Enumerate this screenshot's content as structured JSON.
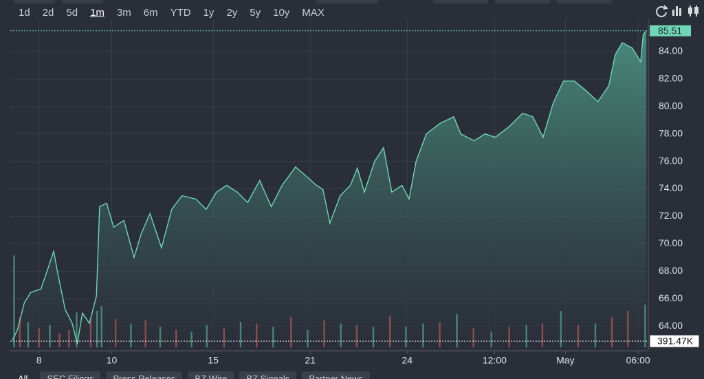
{
  "range_buttons": [
    "1d",
    "2d",
    "5d",
    "1m",
    "3m",
    "6m",
    "YTD",
    "1y",
    "2y",
    "5y",
    "10y",
    "MAX"
  ],
  "active_range": "1m",
  "tabs": [
    "All",
    "SEC Filings",
    "Press Releases",
    "BZ Wire",
    "BZ Signals",
    "Partner News"
  ],
  "active_tab": "All",
  "chart_data": {
    "type": "area",
    "color": "#6fd6b8",
    "grid": true,
    "xlim": [
      0,
      100
    ],
    "ylim": [
      62.45,
      86.35
    ],
    "xticks": [
      {
        "value": 4.5,
        "label": "8"
      },
      {
        "value": 15.9,
        "label": "10"
      },
      {
        "value": 31.8,
        "label": "15"
      },
      {
        "value": 47.0,
        "label": "21"
      },
      {
        "value": 62.2,
        "label": "24"
      },
      {
        "value": 75.9,
        "label": "12:00"
      },
      {
        "value": 87.0,
        "label": "May"
      },
      {
        "value": 98.4,
        "label": "06:00"
      }
    ],
    "yticks": [
      {
        "value": 64,
        "label": "64.00"
      },
      {
        "value": 66,
        "label": "66.00"
      },
      {
        "value": 68,
        "label": "68.00"
      },
      {
        "value": 70,
        "label": "70.00"
      },
      {
        "value": 72,
        "label": "72.00"
      },
      {
        "value": 74,
        "label": "74.00"
      },
      {
        "value": 76,
        "label": "76.00"
      },
      {
        "value": 78,
        "label": "78.00"
      },
      {
        "value": 80,
        "label": "80.00"
      },
      {
        "value": 82,
        "label": "82.00"
      },
      {
        "value": 84,
        "label": "84.00"
      }
    ],
    "x": [
      0.3,
      1.1,
      2.2,
      3.2,
      4.8,
      5.9,
      6.8,
      7.5,
      8.6,
      9.7,
      10.5,
      11.3,
      12.4,
      13.5,
      14.0,
      15.1,
      16.2,
      17.8,
      19.4,
      20.5,
      21.9,
      23.7,
      25.3,
      26.9,
      29.1,
      30.7,
      32.3,
      33.9,
      35.6,
      37.2,
      39.1,
      40.9,
      42.6,
      44.7,
      46.3,
      48.0,
      49.0,
      50.1,
      51.7,
      53.3,
      54.4,
      55.5,
      57.1,
      58.5,
      59.8,
      61.4,
      62.5,
      63.6,
      65.2,
      67.3,
      69.5,
      70.6,
      72.7,
      74.4,
      76.0,
      78.1,
      80.3,
      81.9,
      83.5,
      85.1,
      86.7,
      88.4,
      90.0,
      92.1,
      93.8,
      94.8,
      95.9,
      97.5,
      98.8,
      99.2,
      99.7
    ],
    "values": [
      62.95,
      63.7,
      65.7,
      66.45,
      66.7,
      68.2,
      69.45,
      67.7,
      65.2,
      64.2,
      62.7,
      64.95,
      64.2,
      66.2,
      72.7,
      72.95,
      71.2,
      71.7,
      69.0,
      70.7,
      72.2,
      69.7,
      72.5,
      73.5,
      73.25,
      72.5,
      73.75,
      74.25,
      73.75,
      73.0,
      74.6,
      72.7,
      74.25,
      75.6,
      74.95,
      74.25,
      73.95,
      71.5,
      73.5,
      74.25,
      75.5,
      73.75,
      76.0,
      77.0,
      73.75,
      74.25,
      73.25,
      76.0,
      78.0,
      78.75,
      79.25,
      78.0,
      77.5,
      78.0,
      77.75,
      78.5,
      79.5,
      79.25,
      77.75,
      80.25,
      81.85,
      81.85,
      81.25,
      80.35,
      81.5,
      83.75,
      84.65,
      84.25,
      83.25,
      85.25,
      85.51
    ],
    "last_price": 85.51,
    "volume": {
      "y2lim": [
        0,
        20700000
      ],
      "x": [
        0.6,
        1.5,
        2.8,
        4.5,
        6.2,
        7.7,
        9.2,
        10.4,
        12.6,
        13.6,
        14.3,
        16.5,
        18.9,
        21.2,
        23.5,
        26.0,
        28.4,
        30.8,
        33.5,
        36.1,
        38.6,
        41.2,
        44.0,
        46.6,
        49.2,
        51.8,
        54.3,
        56.9,
        59.5,
        62.0,
        64.7,
        67.3,
        70.0,
        72.6,
        75.4,
        78.2,
        80.9,
        83.4,
        86.3,
        89.0,
        91.7,
        94.3,
        96.8,
        99.5
      ],
      "values": [
        5800000,
        1900000,
        1600000,
        1200000,
        1400000,
        900000,
        1100000,
        2200000,
        1700000,
        2300000,
        2600000,
        1800000,
        1500000,
        1700000,
        1300000,
        1100000,
        1000000,
        1400000,
        1200000,
        1600000,
        1500000,
        1300000,
        1900000,
        1100000,
        1700000,
        1500000,
        1400000,
        1300000,
        2000000,
        1300000,
        1500000,
        1600000,
        2100000,
        1200000,
        1000000,
        1300000,
        1400000,
        1500000,
        2300000,
        1400000,
        1500000,
        1900000,
        2300000,
        2700000
      ],
      "colors": [
        "#4f9a86",
        "#a3564f",
        "#4f9a86",
        "#a3564f",
        "#4f9a86",
        "#a3564f",
        "#a3564f",
        "#4f9a86",
        "#a3564f",
        "#4f9a86",
        "#4f9a86",
        "#a3564f",
        "#4f9a86",
        "#a3564f",
        "#4f9a86",
        "#a3564f",
        "#4f9a86",
        "#4f9a86",
        "#a3564f",
        "#4f9a86",
        "#a3564f",
        "#4f9a86",
        "#a3564f",
        "#4f9a86",
        "#a3564f",
        "#4f9a86",
        "#a3564f",
        "#4f9a86",
        "#a3564f",
        "#4f9a86",
        "#4f9a86",
        "#a3564f",
        "#4f9a86",
        "#a3564f",
        "#4f9a86",
        "#a3564f",
        "#4f9a86",
        "#a3564f",
        "#4f9a86",
        "#a3564f",
        "#4f9a86",
        "#a3564f",
        "#a3564f",
        "#4f9a86"
      ],
      "last_value": 391470,
      "last_value_label": "391.47K"
    }
  }
}
